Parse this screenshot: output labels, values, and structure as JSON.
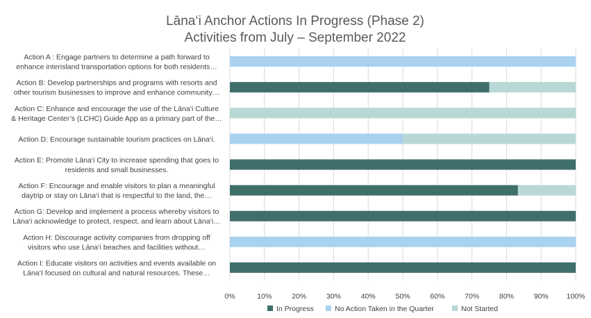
{
  "chart_data": {
    "type": "bar",
    "orientation": "horizontal",
    "stacked": "percent",
    "title": "Lāna‘i Anchor Actions In Progress (Phase 2)",
    "subtitle": "Activities from July – September 2022",
    "categories": [
      [
        "Action A : Engage partners to determine a path forward to",
        "enhance interisland transportation options for both residents…"
      ],
      [
        "Action B: Develop partnerships and programs with resorts and",
        "other tourism businesses to improve and enhance community…"
      ],
      [
        "Action C: Enhance and encourage the use of the Lāna‘i Culture",
        "& Heritage Center’s (LCHC) Guide App as a primary part of the…"
      ],
      [
        "Action D: Encourage sustainable tourism practices on Lāna‘i."
      ],
      [
        "Action E: Promote Lāna‘i City to increase spending that goes to",
        "residents and small businesses."
      ],
      [
        "Action F: Encourage and enable visitors to plan a meaningful",
        "daytrip or stay on Lāna‘i that is respectful to the land, the…"
      ],
      [
        "Action G: Develop and implement a process whereby visitors to",
        "Lāna‘i acknowledge to protect, respect, and learn about Lāna‘i…"
      ],
      [
        "Action H: Discourage activity companies from dropping off",
        "visitors who use Lāna‘i beaches and facilities without…"
      ],
      [
        "Action I:  Educate visitors on activities and events available on",
        "Lāna‘I focused on cultural and natural resources. These…"
      ]
    ],
    "series": [
      {
        "name": "In Progress",
        "color": "#3f6f6b",
        "values": [
          0,
          75,
          0,
          0,
          100,
          83.3,
          100,
          0,
          100
        ]
      },
      {
        "name": "No Action Taken in the Quarter",
        "color": "#a9d1f0",
        "values": [
          100,
          0,
          0,
          50,
          0,
          0,
          0,
          100,
          0
        ]
      },
      {
        "name": "Not Started",
        "color": "#b8d8d5",
        "values": [
          0,
          25,
          100,
          50,
          0,
          16.7,
          0,
          0,
          0
        ]
      }
    ],
    "xlim": [
      0,
      1
    ],
    "x_ticks": [
      "0%",
      "10%",
      "20%",
      "30%",
      "40%",
      "50%",
      "60%",
      "70%",
      "80%",
      "90%",
      "100%"
    ],
    "grid": true,
    "legend_position": "bottom"
  }
}
